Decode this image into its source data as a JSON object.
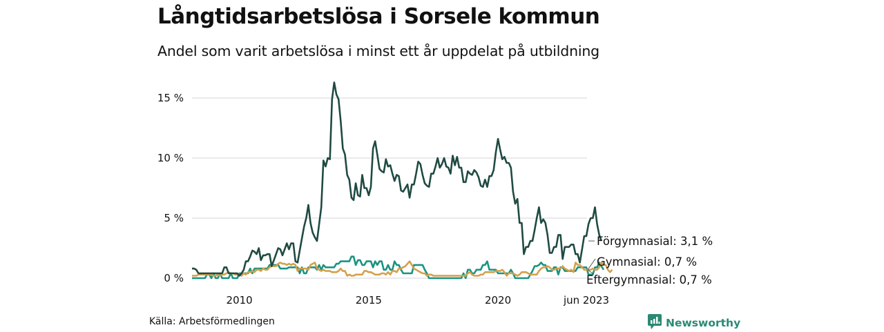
{
  "header": {
    "title": "Långtidsarbetslösa i Sorsele kommun",
    "subtitle": "Andel som varit arbetslösa i minst ett år uppdelat på utbildning"
  },
  "footer": {
    "source": "Källa: Arbetsförmedlingen",
    "brand": "Newsworthy",
    "brand_icon": "bar-chart-speech-bubble-icon"
  },
  "colors": {
    "forgymnasial": "#1f4a42",
    "gymnasial": "#1a9380",
    "eftergymnasial": "#d4a04c",
    "grid": "#e3e3e8"
  },
  "chart_data": {
    "type": "line",
    "title": "Långtidsarbetslösa i Sorsele kommun",
    "subtitle": "Andel som varit arbetslösa i minst ett år uppdelat på utbildning",
    "xlabel": "",
    "ylabel": "",
    "x_start": "2008-03",
    "x_end": "2023-06",
    "x_frequency": "monthly",
    "ylim": [
      0,
      16.5
    ],
    "y_ticks": [
      0,
      5,
      10,
      15
    ],
    "y_tick_labels": [
      "0 %",
      "5 %",
      "10 %",
      "15 %"
    ],
    "x_ticks": [
      "2010",
      "2015",
      "2020",
      "jun 2023"
    ],
    "grid": true,
    "legend": "inline-end-labels",
    "series": [
      {
        "name": "Förgymnasial",
        "end_label": "Förgymnasial: 3,1 %",
        "color_key": "forgymnasial",
        "values": [
          0.8,
          0.8,
          0.7,
          0.4,
          0.4,
          0.4,
          0.4,
          0.4,
          0.4,
          0.4,
          0.4,
          0.4,
          0.4,
          0.4,
          0.4,
          0.9,
          0.9,
          0.4,
          0.4,
          0.4,
          0.4,
          0.4,
          0.2,
          0.4,
          0.7,
          1.4,
          1.4,
          1.8,
          2.3,
          2.2,
          2.0,
          2.5,
          1.5,
          1.9,
          1.9,
          2.0,
          2.0,
          1.0,
          1.5,
          2.0,
          2.5,
          2.4,
          1.9,
          2.4,
          2.9,
          2.4,
          2.9,
          2.9,
          1.4,
          1.3,
          2.3,
          3.3,
          4.3,
          5.0,
          6.1,
          4.6,
          3.8,
          3.4,
          3.1,
          4.5,
          5.9,
          9.8,
          9.3,
          10.0,
          9.9,
          14.9,
          16.3,
          15.3,
          14.9,
          13.1,
          10.8,
          10.3,
          8.6,
          8.2,
          6.7,
          6.5,
          7.9,
          6.9,
          6.8,
          8.6,
          7.5,
          7.5,
          6.9,
          7.6,
          10.8,
          11.4,
          10.3,
          9.1,
          8.9,
          8.8,
          9.9,
          9.3,
          9.4,
          8.7,
          8.1,
          8.6,
          8.5,
          7.3,
          7.2,
          7.5,
          7.8,
          6.7,
          7.8,
          7.8,
          8.7,
          9.7,
          9.5,
          8.6,
          7.9,
          7.7,
          7.6,
          8.7,
          8.7,
          9.3,
          10.0,
          9.2,
          9.5,
          10.0,
          9.3,
          9.2,
          8.7,
          10.2,
          9.4,
          10.1,
          9.2,
          9.2,
          8.0,
          8.0,
          8.9,
          8.7,
          8.6,
          9.0,
          8.8,
          8.4,
          7.7,
          7.6,
          8.2,
          7.6,
          8.5,
          8.5,
          9.0,
          10.5,
          11.6,
          10.7,
          9.9,
          10.1,
          9.6,
          9.6,
          9.2,
          7.2,
          6.2,
          6.6,
          4.6,
          4.6,
          2.0,
          2.6,
          2.6,
          3.1,
          3.1,
          4.0,
          5.0,
          5.9,
          4.6,
          4.9,
          4.6,
          3.6,
          2.1,
          2.1,
          2.6,
          2.6,
          3.6,
          3.6,
          1.6,
          2.6,
          2.6,
          2.6,
          2.8,
          2.8,
          2.0,
          2.0,
          1.3,
          2.4,
          3.5,
          3.5,
          4.5,
          5.0,
          5.0,
          5.9,
          4.5,
          3.6,
          3.1
        ]
      },
      {
        "name": "Gymnasial",
        "end_label": "Gymnasial: 0,7 %",
        "color_key": "gymnasial",
        "values": [
          0.0,
          0.0,
          0.0,
          0.0,
          0.0,
          0.0,
          0.0,
          0.3,
          0.3,
          0.0,
          0.4,
          0.0,
          0.0,
          0.4,
          0.0,
          0.0,
          0.0,
          0.0,
          0.4,
          0.0,
          0.0,
          0.0,
          0.4,
          0.4,
          0.4,
          0.4,
          0.4,
          0.8,
          0.4,
          0.8,
          0.8,
          0.8,
          0.8,
          0.8,
          0.8,
          0.8,
          1.1,
          1.1,
          1.1,
          1.1,
          1.1,
          0.8,
          0.8,
          0.8,
          0.8,
          0.9,
          0.9,
          0.9,
          0.9,
          0.9,
          0.4,
          0.9,
          0.4,
          0.4,
          0.9,
          0.9,
          0.9,
          0.9,
          0.7,
          1.1,
          0.7,
          1.1,
          0.9,
          0.9,
          0.9,
          0.9,
          0.9,
          1.2,
          1.2,
          1.4,
          1.4,
          1.4,
          1.4,
          1.4,
          1.8,
          1.8,
          1.1,
          1.5,
          1.5,
          1.1,
          1.1,
          1.4,
          1.4,
          1.4,
          0.9,
          1.4,
          1.1,
          1.4,
          1.4,
          0.7,
          0.7,
          1.1,
          0.7,
          0.7,
          1.4,
          1.1,
          1.1,
          0.7,
          0.4,
          0.4,
          0.4,
          0.4,
          0.4,
          1.1,
          1.1,
          1.1,
          1.1,
          1.1,
          0.7,
          0.4,
          0.0,
          0.0,
          0.0,
          0.0,
          0.0,
          0.0,
          0.0,
          0.0,
          0.0,
          0.0,
          0.0,
          0.0,
          0.0,
          0.0,
          0.0,
          0.0,
          0.4,
          0.0,
          0.7,
          0.7,
          0.4,
          0.4,
          0.7,
          0.7,
          0.7,
          1.1,
          1.1,
          1.4,
          0.7,
          0.7,
          0.7,
          0.7,
          0.4,
          0.4,
          0.4,
          0.4,
          0.4,
          0.4,
          0.7,
          0.4,
          0.0,
          0.0,
          0.0,
          0.0,
          0.0,
          0.0,
          0.0,
          0.3,
          0.6,
          1.0,
          1.0,
          1.1,
          1.3,
          1.1,
          1.1,
          0.6,
          0.6,
          0.6,
          0.9,
          0.9,
          0.3,
          0.9,
          0.9,
          0.6,
          0.6,
          0.6,
          0.6,
          0.6,
          0.6,
          0.9,
          0.9,
          0.9,
          0.9,
          0.9,
          0.3,
          0.3,
          0.3,
          0.9,
          0.9,
          1.3,
          1.0,
          0.7
        ]
      },
      {
        "name": "Eftergymnasial",
        "end_label": "Eftergymnasial: 0,7 %",
        "color_key": "eftergymnasial",
        "values": [
          0.2,
          0.2,
          0.2,
          0.3,
          0.3,
          0.3,
          0.3,
          0.3,
          0.3,
          0.3,
          0.2,
          0.2,
          0.3,
          0.2,
          0.3,
          0.3,
          0.4,
          0.5,
          0.4,
          0.4,
          0.3,
          0.3,
          0.3,
          0.2,
          0.4,
          0.3,
          0.5,
          0.5,
          0.6,
          0.5,
          0.7,
          0.7,
          0.6,
          0.8,
          0.7,
          0.7,
          0.9,
          1.0,
          1.0,
          1.0,
          1.2,
          1.3,
          1.2,
          1.2,
          1.1,
          1.2,
          1.1,
          1.2,
          1.1,
          0.6,
          0.8,
          0.8,
          0.8,
          0.8,
          0.7,
          1.1,
          1.2,
          1.3,
          0.8,
          0.7,
          0.6,
          0.7,
          0.6,
          0.6,
          0.6,
          0.5,
          0.5,
          0.5,
          0.6,
          0.8,
          0.6,
          0.6,
          0.2,
          0.3,
          0.2,
          0.2,
          0.3,
          0.3,
          0.3,
          0.3,
          0.6,
          0.6,
          0.5,
          0.5,
          0.4,
          0.3,
          0.3,
          0.3,
          0.4,
          0.4,
          0.3,
          0.5,
          0.3,
          0.6,
          0.6,
          0.5,
          0.8,
          0.8,
          0.9,
          1.0,
          1.2,
          1.4,
          1.1,
          0.8,
          0.7,
          0.6,
          0.5,
          0.4,
          0.4,
          0.2,
          0.3,
          0.3,
          0.2,
          0.2,
          0.2,
          0.2,
          0.2,
          0.2,
          0.2,
          0.2,
          0.2,
          0.2,
          0.2,
          0.2,
          0.2,
          0.2,
          0.2,
          0.2,
          0.4,
          0.5,
          0.3,
          0.2,
          0.2,
          0.2,
          0.3,
          0.3,
          0.5,
          0.5,
          0.5,
          0.5,
          0.5,
          0.6,
          0.6,
          0.6,
          0.7,
          0.5,
          0.2,
          0.4,
          0.4,
          0.4,
          0.3,
          0.2,
          0.3,
          0.5,
          0.5,
          0.5,
          0.4,
          0.3,
          0.3,
          0.3,
          0.3,
          0.6,
          0.8,
          0.9,
          0.9,
          1.0,
          0.9,
          0.7,
          0.7,
          0.8,
          0.8,
          0.8,
          1.0,
          0.8,
          0.7,
          0.6,
          0.7,
          0.5,
          1.3,
          1.1,
          1.1,
          0.9,
          0.7,
          0.7,
          0.7,
          0.7,
          0.8,
          0.7,
          0.7,
          0.9,
          1.3,
          1.1,
          1.1,
          0.7,
          0.5,
          0.7
        ]
      }
    ]
  }
}
